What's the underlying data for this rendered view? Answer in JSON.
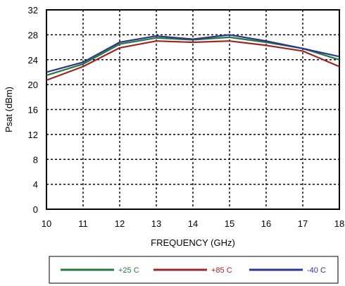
{
  "chart_data": {
    "type": "line",
    "title": "",
    "xlabel": "FREQUENCY (GHz)",
    "ylabel": "Psat (dBm)",
    "x": [
      10,
      11,
      12,
      13,
      14,
      15,
      16,
      17,
      18
    ],
    "xlim": [
      10,
      18
    ],
    "ylim": [
      0,
      32
    ],
    "xticks": [
      "10",
      "11",
      "12",
      "13",
      "14",
      "15",
      "16",
      "17",
      "18"
    ],
    "yticks": [
      "0",
      "4",
      "8",
      "12",
      "16",
      "20",
      "24",
      "28",
      "32"
    ],
    "grid": true,
    "legend_placement": "bottom",
    "series": [
      {
        "name": "+25 C",
        "color": "#217a3c",
        "values": [
          21.5,
          23.3,
          26.5,
          27.5,
          27.2,
          27.6,
          26.8,
          25.8,
          24.0
        ]
      },
      {
        "name": "+85 C",
        "color": "#a02424",
        "values": [
          20.7,
          22.9,
          25.9,
          27.0,
          26.8,
          27.0,
          26.3,
          25.4,
          22.9
        ]
      },
      {
        "name": "-40 C",
        "color": "#2b3590",
        "values": [
          22.0,
          23.6,
          26.8,
          27.8,
          27.3,
          28.0,
          27.0,
          25.8,
          24.5
        ]
      }
    ]
  }
}
